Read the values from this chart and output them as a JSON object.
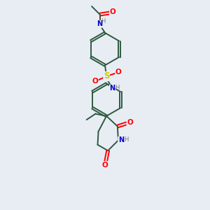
{
  "bg_color": "#e8edf4",
  "bond_color": "#2d5a3d",
  "atom_colors": {
    "O": "#ff0000",
    "N": "#0000cc",
    "S": "#cccc00",
    "H": "#777777",
    "C": "#2d5a3d"
  },
  "figsize": [
    3.0,
    3.0
  ],
  "dpi": 100,
  "xlim": [
    0,
    10
  ],
  "ylim": [
    0,
    14
  ]
}
